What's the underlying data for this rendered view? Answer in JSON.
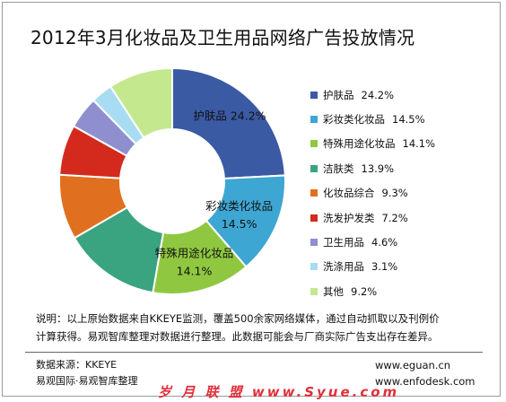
{
  "chart_data": {
    "type": "pie",
    "title": "2012年3月化妆品及卫生用品网络广告投放情况",
    "slices": [
      {
        "label": "护肤品",
        "value": 24.2,
        "value_text": "24.2%",
        "color": "#3b5aa4"
      },
      {
        "label": "彩妆类化妆品",
        "value": 14.5,
        "value_text": "14.5%",
        "color": "#3ea6d3"
      },
      {
        "label": "特殊用途化妆品",
        "value": 14.1,
        "value_text": "14.1%",
        "color": "#8fc840"
      },
      {
        "label": "洁肤类",
        "value": 13.9,
        "value_text": "13.9%",
        "color": "#3aa380"
      },
      {
        "label": "化妆品综合",
        "value": 9.3,
        "value_text": "9.3%",
        "color": "#e07020"
      },
      {
        "label": "洗发护发类",
        "value": 7.2,
        "value_text": "7.2%",
        "color": "#d42a1e"
      },
      {
        "label": "卫生用品",
        "value": 4.6,
        "value_text": "4.6%",
        "color": "#8f8fd0"
      },
      {
        "label": "洗涤用品",
        "value": 3.1,
        "value_text": "3.1%",
        "color": "#a8dcf2"
      },
      {
        "label": "其他",
        "value": 9.2,
        "value_text": "9.2%",
        "color": "#c4e88e"
      }
    ],
    "data_labels": [
      {
        "label": "护肤品",
        "value_text": "24.2%"
      },
      {
        "label": "彩妆类化妆品",
        "value_text": "14.5%"
      },
      {
        "label": "特殊用途化妆品",
        "value_text": "14.1%"
      }
    ],
    "legend_position": "right"
  },
  "note": {
    "line1": "说明：以上原始数据来自KKEYE监测，覆盖500余家网络媒体，通过自动抓取以及刊例价",
    "line2": "计算获得。易观智库整理对数据进行整理。此数据可能会与厂商实际广告支出存在差异。"
  },
  "footer": {
    "source": "数据来源：KKEYE",
    "org": "易观国际·易观智库整理",
    "url1": "www.eguan.cn",
    "url2": "www.enfodesk.com"
  },
  "watermark": "岁 月 联 盟 www.Syue.com"
}
